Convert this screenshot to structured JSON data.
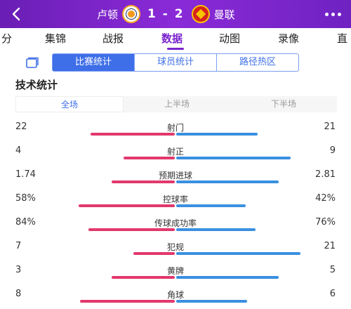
{
  "header": {
    "home_team": "卢顿",
    "score": "1 - 2",
    "away_team": "曼联"
  },
  "nav": {
    "tabs": [
      {
        "label": "分"
      },
      {
        "label": "集锦"
      },
      {
        "label": "战报"
      },
      {
        "label": "数据"
      },
      {
        "label": "动图"
      },
      {
        "label": "录像"
      },
      {
        "label": "直"
      }
    ],
    "active": "数据"
  },
  "subtabs": [
    {
      "label": "比赛统计"
    },
    {
      "label": "球员统计"
    },
    {
      "label": "路径热区"
    }
  ],
  "section_title": "技术统计",
  "periods": [
    {
      "label": "全场"
    },
    {
      "label": "上半场"
    },
    {
      "label": "下半场"
    }
  ],
  "stats": [
    {
      "name": "射门",
      "home": "22",
      "away": "21",
      "home_share": 0.51,
      "away_share": 0.49
    },
    {
      "name": "射正",
      "home": "4",
      "away": "9",
      "home_share": 0.31,
      "away_share": 0.69
    },
    {
      "name": "预期进球",
      "home": "1.74",
      "away": "2.81",
      "home_share": 0.38,
      "away_share": 0.62
    },
    {
      "name": "控球率",
      "home": "58%",
      "away": "42%",
      "home_share": 0.58,
      "away_share": 0.42
    },
    {
      "name": "传球成功率",
      "home": "84%",
      "away": "76%",
      "home_share": 0.52,
      "away_share": 0.48
    },
    {
      "name": "犯规",
      "home": "7",
      "away": "21",
      "home_share": 0.25,
      "away_share": 0.75
    },
    {
      "name": "黄牌",
      "home": "3",
      "away": "5",
      "home_share": 0.38,
      "away_share": 0.62
    },
    {
      "name": "角球",
      "home": "8",
      "away": "6",
      "home_share": 0.57,
      "away_share": 0.43
    }
  ],
  "colors": {
    "header_purple": "#7a24cf",
    "active_blue": "#3e6ee8",
    "home_bar": "#e2386d",
    "away_bar": "#3a90e0"
  }
}
